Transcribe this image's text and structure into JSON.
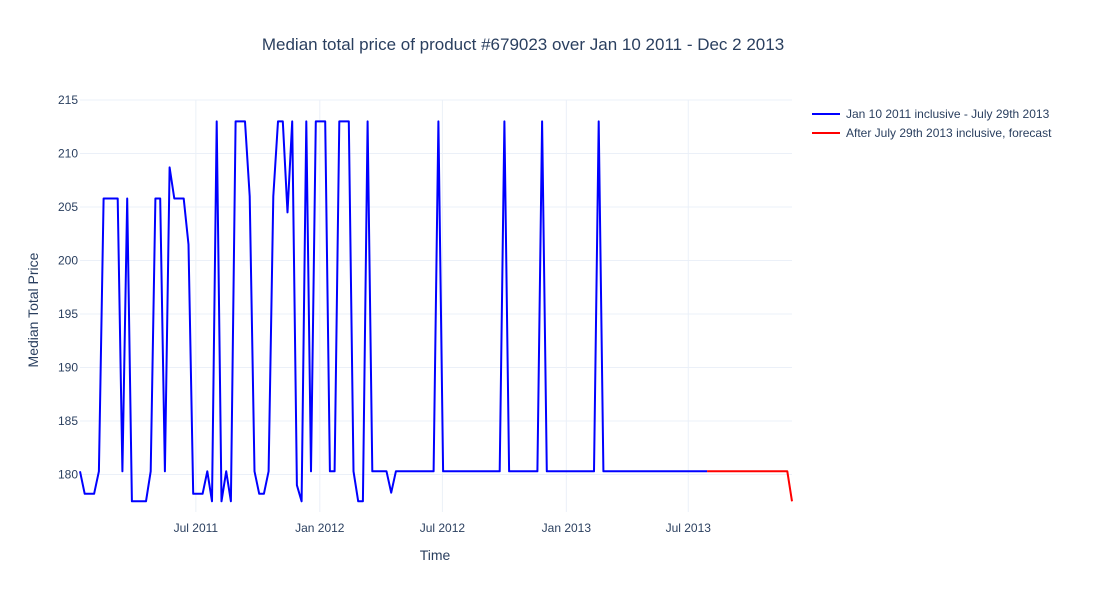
{
  "chart_data": {
    "type": "line",
    "title": "Median total price of product #679023 over Jan 10 2011 - Dec 2 2013",
    "xlabel": "Time",
    "ylabel": "Median Total Price",
    "x_range": [
      "2011-01-10",
      "2013-12-02"
    ],
    "ylim": [
      176.5,
      215
    ],
    "y_ticks": [
      180,
      185,
      190,
      195,
      200,
      205,
      210,
      215
    ],
    "x_ticks": [
      {
        "date": "2011-07-01",
        "label": "Jul 2011"
      },
      {
        "date": "2012-01-01",
        "label": "Jan 2012"
      },
      {
        "date": "2012-07-01",
        "label": "Jul 2012"
      },
      {
        "date": "2013-01-01",
        "label": "Jan 2013"
      },
      {
        "date": "2013-07-01",
        "label": "Jul 2013"
      }
    ],
    "grid": true,
    "legend_position": "top-right",
    "series": [
      {
        "name": "Jan 10 2011 inclusive - July 29th 2013",
        "color": "#0000ff",
        "points": [
          [
            "2011-01-10",
            180.3
          ],
          [
            "2011-01-17",
            178.2
          ],
          [
            "2011-01-31",
            178.2
          ],
          [
            "2011-02-07",
            180.3
          ],
          [
            "2011-02-14",
            205.8
          ],
          [
            "2011-03-07",
            205.8
          ],
          [
            "2011-03-14",
            180.3
          ],
          [
            "2011-03-21",
            205.8
          ],
          [
            "2011-03-28",
            177.5
          ],
          [
            "2011-04-18",
            177.5
          ],
          [
            "2011-04-25",
            180.3
          ],
          [
            "2011-05-02",
            205.8
          ],
          [
            "2011-05-09",
            205.8
          ],
          [
            "2011-05-16",
            180.3
          ],
          [
            "2011-05-23",
            208.7
          ],
          [
            "2011-05-30",
            205.8
          ],
          [
            "2011-06-13",
            205.8
          ],
          [
            "2011-06-20",
            201.5
          ],
          [
            "2011-06-27",
            178.2
          ],
          [
            "2011-07-11",
            178.2
          ],
          [
            "2011-07-18",
            180.3
          ],
          [
            "2011-07-25",
            177.5
          ],
          [
            "2011-08-01",
            213
          ],
          [
            "2011-08-08",
            177.5
          ],
          [
            "2011-08-15",
            180.3
          ],
          [
            "2011-08-22",
            177.5
          ],
          [
            "2011-08-29",
            213
          ],
          [
            "2011-09-12",
            213
          ],
          [
            "2011-09-19",
            206
          ],
          [
            "2011-09-26",
            180.3
          ],
          [
            "2011-10-03",
            178.2
          ],
          [
            "2011-10-10",
            178.2
          ],
          [
            "2011-10-17",
            180.3
          ],
          [
            "2011-10-24",
            206
          ],
          [
            "2011-10-31",
            213
          ],
          [
            "2011-11-07",
            213
          ],
          [
            "2011-11-14",
            204.5
          ],
          [
            "2011-11-21",
            213
          ],
          [
            "2011-11-28",
            179
          ],
          [
            "2011-12-05",
            177.5
          ],
          [
            "2011-12-12",
            213
          ],
          [
            "2011-12-19",
            180.3
          ],
          [
            "2011-12-26",
            213
          ],
          [
            "2012-01-09",
            213
          ],
          [
            "2012-01-16",
            180.3
          ],
          [
            "2012-01-23",
            180.3
          ],
          [
            "2012-01-30",
            213
          ],
          [
            "2012-02-13",
            213
          ],
          [
            "2012-02-20",
            180.3
          ],
          [
            "2012-02-27",
            177.5
          ],
          [
            "2012-03-05",
            177.5
          ],
          [
            "2012-03-12",
            213
          ],
          [
            "2012-03-19",
            180.3
          ],
          [
            "2012-04-09",
            180.3
          ],
          [
            "2012-04-16",
            178.3
          ],
          [
            "2012-04-23",
            180.3
          ],
          [
            "2012-06-18",
            180.3
          ],
          [
            "2012-06-25",
            213
          ],
          [
            "2012-07-02",
            180.3
          ],
          [
            "2012-09-24",
            180.3
          ],
          [
            "2012-10-01",
            213
          ],
          [
            "2012-10-08",
            180.3
          ],
          [
            "2012-11-19",
            180.3
          ],
          [
            "2012-11-26",
            213
          ],
          [
            "2012-12-03",
            180.3
          ],
          [
            "2013-02-11",
            180.3
          ],
          [
            "2013-02-18",
            213
          ],
          [
            "2013-02-25",
            180.3
          ],
          [
            "2013-07-29",
            180.3
          ]
        ]
      },
      {
        "name": "After July 29th 2013 inclusive, forecast",
        "color": "#ff0000",
        "points": [
          [
            "2013-07-29",
            180.3
          ],
          [
            "2013-11-25",
            180.3
          ],
          [
            "2013-12-02",
            177.5
          ]
        ]
      }
    ]
  }
}
